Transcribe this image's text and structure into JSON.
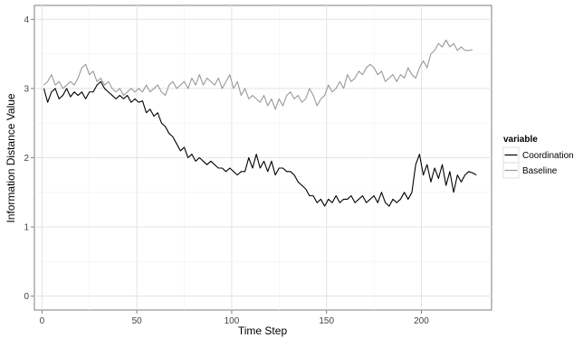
{
  "chart_data": {
    "type": "line",
    "title": "",
    "xlabel": "Time Step",
    "ylabel": "Information Distance Value",
    "xlim": [
      -4,
      237
    ],
    "ylim": [
      -0.2,
      4.2
    ],
    "x_ticks": [
      0,
      50,
      100,
      150,
      200
    ],
    "y_ticks": [
      0,
      1,
      2,
      3,
      4
    ],
    "grid": true,
    "legend": {
      "title": "variable",
      "placement": "right"
    },
    "series": [
      {
        "name": "Coordination",
        "color": "#000000",
        "points": [
          [
            1,
            3.0
          ],
          [
            3,
            2.8
          ],
          [
            5,
            2.95
          ],
          [
            7,
            3.0
          ],
          [
            9,
            2.85
          ],
          [
            11,
            2.9
          ],
          [
            13,
            3.0
          ],
          [
            15,
            2.88
          ],
          [
            17,
            2.95
          ],
          [
            19,
            2.9
          ],
          [
            21,
            2.95
          ],
          [
            23,
            2.85
          ],
          [
            25,
            2.95
          ],
          [
            27,
            2.95
          ],
          [
            29,
            3.05
          ],
          [
            31,
            3.1
          ],
          [
            33,
            3.0
          ],
          [
            35,
            2.95
          ],
          [
            37,
            2.9
          ],
          [
            39,
            2.85
          ],
          [
            41,
            2.9
          ],
          [
            43,
            2.85
          ],
          [
            45,
            2.9
          ],
          [
            47,
            2.8
          ],
          [
            49,
            2.85
          ],
          [
            51,
            2.8
          ],
          [
            53,
            2.82
          ],
          [
            55,
            2.65
          ],
          [
            57,
            2.7
          ],
          [
            59,
            2.6
          ],
          [
            61,
            2.65
          ],
          [
            63,
            2.5
          ],
          [
            65,
            2.45
          ],
          [
            67,
            2.35
          ],
          [
            69,
            2.3
          ],
          [
            71,
            2.2
          ],
          [
            73,
            2.1
          ],
          [
            75,
            2.15
          ],
          [
            77,
            2.0
          ],
          [
            79,
            2.05
          ],
          [
            81,
            1.95
          ],
          [
            83,
            2.0
          ],
          [
            85,
            1.95
          ],
          [
            87,
            1.9
          ],
          [
            89,
            1.95
          ],
          [
            91,
            1.9
          ],
          [
            93,
            1.85
          ],
          [
            95,
            1.85
          ],
          [
            97,
            1.8
          ],
          [
            99,
            1.85
          ],
          [
            101,
            1.8
          ],
          [
            103,
            1.75
          ],
          [
            105,
            1.8
          ],
          [
            107,
            1.8
          ],
          [
            109,
            2.0
          ],
          [
            111,
            1.85
          ],
          [
            113,
            2.05
          ],
          [
            115,
            1.85
          ],
          [
            117,
            1.95
          ],
          [
            119,
            1.8
          ],
          [
            121,
            1.95
          ],
          [
            123,
            1.75
          ],
          [
            125,
            1.85
          ],
          [
            127,
            1.85
          ],
          [
            129,
            1.8
          ],
          [
            131,
            1.8
          ],
          [
            133,
            1.75
          ],
          [
            135,
            1.65
          ],
          [
            137,
            1.6
          ],
          [
            139,
            1.55
          ],
          [
            141,
            1.45
          ],
          [
            143,
            1.45
          ],
          [
            145,
            1.35
          ],
          [
            147,
            1.4
          ],
          [
            149,
            1.3
          ],
          [
            151,
            1.4
          ],
          [
            153,
            1.35
          ],
          [
            155,
            1.45
          ],
          [
            157,
            1.35
          ],
          [
            159,
            1.4
          ],
          [
            161,
            1.4
          ],
          [
            163,
            1.45
          ],
          [
            165,
            1.35
          ],
          [
            167,
            1.4
          ],
          [
            169,
            1.45
          ],
          [
            171,
            1.35
          ],
          [
            173,
            1.4
          ],
          [
            175,
            1.45
          ],
          [
            177,
            1.35
          ],
          [
            179,
            1.5
          ],
          [
            181,
            1.35
          ],
          [
            183,
            1.3
          ],
          [
            185,
            1.4
          ],
          [
            187,
            1.35
          ],
          [
            189,
            1.4
          ],
          [
            191,
            1.5
          ],
          [
            193,
            1.4
          ],
          [
            195,
            1.5
          ],
          [
            197,
            1.9
          ],
          [
            199,
            2.05
          ],
          [
            201,
            1.75
          ],
          [
            203,
            1.9
          ],
          [
            205,
            1.65
          ],
          [
            207,
            1.85
          ],
          [
            209,
            1.7
          ],
          [
            211,
            1.9
          ],
          [
            213,
            1.6
          ],
          [
            215,
            1.8
          ],
          [
            217,
            1.5
          ],
          [
            219,
            1.75
          ],
          [
            221,
            1.65
          ],
          [
            223,
            1.75
          ],
          [
            225,
            1.8
          ],
          [
            227,
            1.78
          ],
          [
            229,
            1.75
          ]
        ]
      },
      {
        "name": "Baseline",
        "color": "#999999",
        "points": [
          [
            1,
            3.05
          ],
          [
            3,
            3.1
          ],
          [
            5,
            3.2
          ],
          [
            7,
            3.05
          ],
          [
            9,
            3.1
          ],
          [
            11,
            3.0
          ],
          [
            13,
            3.05
          ],
          [
            15,
            3.1
          ],
          [
            17,
            3.05
          ],
          [
            19,
            3.15
          ],
          [
            21,
            3.3
          ],
          [
            23,
            3.35
          ],
          [
            25,
            3.2
          ],
          [
            27,
            3.25
          ],
          [
            29,
            3.1
          ],
          [
            31,
            3.15
          ],
          [
            33,
            3.05
          ],
          [
            35,
            3.1
          ],
          [
            37,
            3.0
          ],
          [
            39,
            2.95
          ],
          [
            41,
            3.0
          ],
          [
            43,
            2.9
          ],
          [
            45,
            2.95
          ],
          [
            47,
            3.0
          ],
          [
            49,
            2.95
          ],
          [
            51,
            3.0
          ],
          [
            53,
            2.95
          ],
          [
            55,
            3.05
          ],
          [
            57,
            2.95
          ],
          [
            59,
            3.0
          ],
          [
            61,
            3.05
          ],
          [
            63,
            2.95
          ],
          [
            65,
            2.9
          ],
          [
            67,
            3.05
          ],
          [
            69,
            3.1
          ],
          [
            71,
            3.0
          ],
          [
            73,
            3.05
          ],
          [
            75,
            3.1
          ],
          [
            77,
            3.0
          ],
          [
            79,
            3.15
          ],
          [
            81,
            3.05
          ],
          [
            83,
            3.2
          ],
          [
            85,
            3.05
          ],
          [
            87,
            3.15
          ],
          [
            89,
            3.1
          ],
          [
            91,
            3.05
          ],
          [
            93,
            3.15
          ],
          [
            95,
            3.0
          ],
          [
            97,
            3.1
          ],
          [
            99,
            3.2
          ],
          [
            101,
            3.0
          ],
          [
            103,
            3.1
          ],
          [
            105,
            2.9
          ],
          [
            107,
            3.0
          ],
          [
            109,
            2.85
          ],
          [
            111,
            2.9
          ],
          [
            113,
            2.85
          ],
          [
            115,
            2.8
          ],
          [
            117,
            2.9
          ],
          [
            119,
            2.75
          ],
          [
            121,
            2.85
          ],
          [
            123,
            2.7
          ],
          [
            125,
            2.85
          ],
          [
            127,
            2.75
          ],
          [
            129,
            2.9
          ],
          [
            131,
            2.95
          ],
          [
            133,
            2.85
          ],
          [
            135,
            2.9
          ],
          [
            137,
            2.8
          ],
          [
            139,
            2.85
          ],
          [
            141,
            3.0
          ],
          [
            143,
            2.9
          ],
          [
            145,
            2.75
          ],
          [
            147,
            2.85
          ],
          [
            149,
            2.9
          ],
          [
            151,
            3.05
          ],
          [
            153,
            2.95
          ],
          [
            155,
            3.0
          ],
          [
            157,
            3.1
          ],
          [
            159,
            3.0
          ],
          [
            161,
            3.2
          ],
          [
            163,
            3.1
          ],
          [
            165,
            3.15
          ],
          [
            167,
            3.25
          ],
          [
            169,
            3.2
          ],
          [
            171,
            3.3
          ],
          [
            173,
            3.35
          ],
          [
            175,
            3.3
          ],
          [
            177,
            3.2
          ],
          [
            179,
            3.25
          ],
          [
            181,
            3.1
          ],
          [
            183,
            3.15
          ],
          [
            185,
            3.2
          ],
          [
            187,
            3.1
          ],
          [
            189,
            3.2
          ],
          [
            191,
            3.15
          ],
          [
            193,
            3.3
          ],
          [
            195,
            3.2
          ],
          [
            197,
            3.15
          ],
          [
            199,
            3.3
          ],
          [
            201,
            3.4
          ],
          [
            203,
            3.3
          ],
          [
            205,
            3.5
          ],
          [
            207,
            3.55
          ],
          [
            209,
            3.65
          ],
          [
            211,
            3.6
          ],
          [
            213,
            3.7
          ],
          [
            215,
            3.6
          ],
          [
            217,
            3.65
          ],
          [
            219,
            3.55
          ],
          [
            221,
            3.6
          ],
          [
            223,
            3.55
          ],
          [
            225,
            3.55
          ],
          [
            227,
            3.56
          ]
        ]
      }
    ]
  }
}
